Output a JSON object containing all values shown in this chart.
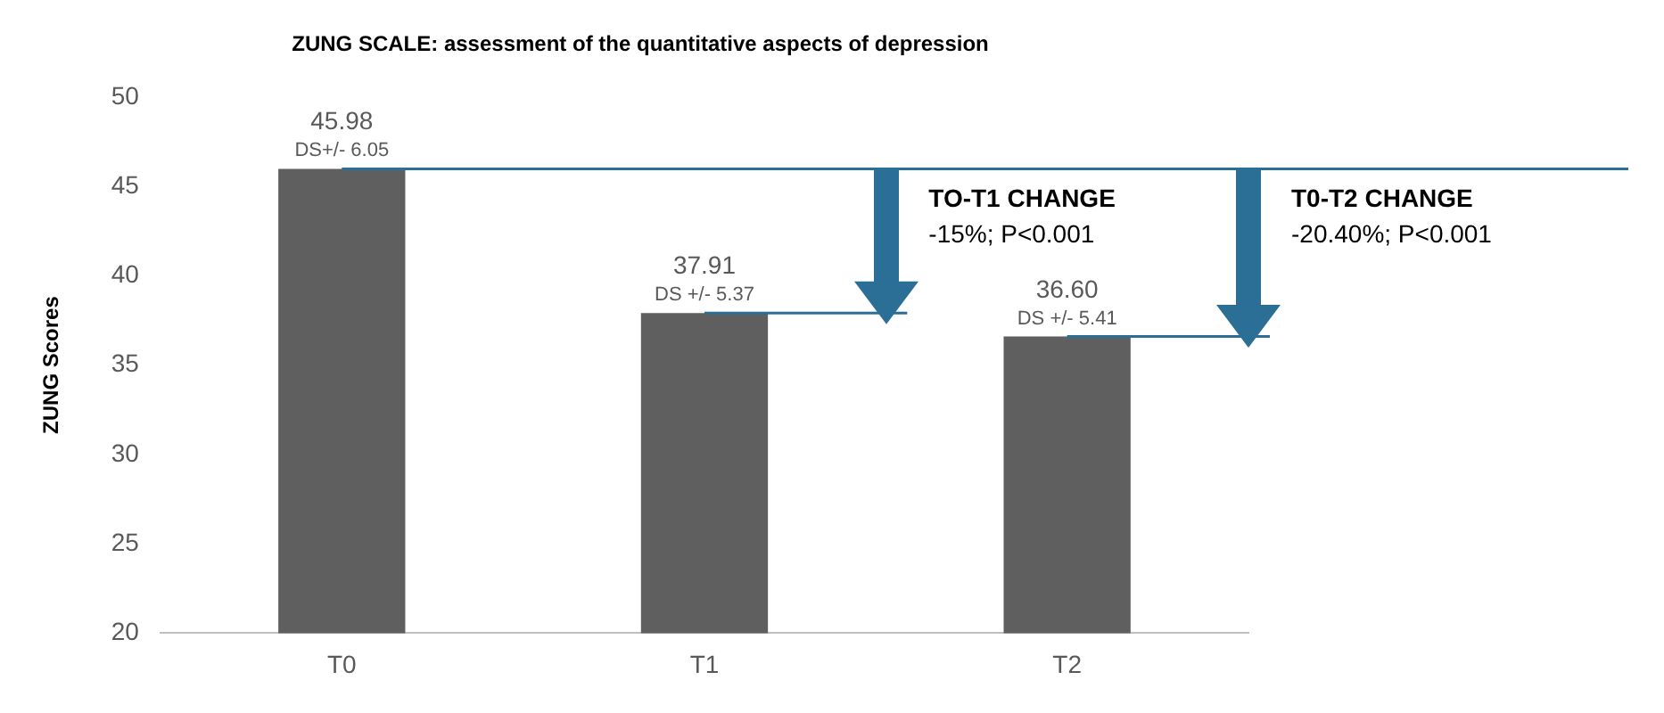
{
  "chart_data": {
    "type": "bar",
    "title": "ZUNG SCALE: assessment of the quantitative aspects of depression",
    "ylabel": "ZUNG Scores",
    "categories": [
      "T0",
      "T1",
      "T2"
    ],
    "values": [
      45.98,
      37.91,
      36.6
    ],
    "value_labels": [
      "45.98",
      "37.91",
      "36.60"
    ],
    "color": "#5f5f5f",
    "ylim": [
      20,
      50
    ],
    "yticks": [
      20,
      25,
      30,
      35,
      40,
      45,
      50
    ],
    "grid": false,
    "legend": false,
    "ref_lines": [
      {
        "axis": "y",
        "value": 45.98,
        "color": "#2b6e96"
      },
      {
        "axis": "y",
        "value": 37.91,
        "color": "#2b6e96"
      },
      {
        "axis": "y",
        "value": 36.6,
        "color": "#2b6e96"
      }
    ],
    "annotations": [
      {
        "text": "DS+/- 6.05",
        "x": "T0",
        "y": 45.98
      },
      {
        "text": "DS +/- 5.37",
        "x": "T1",
        "y": 37.91
      },
      {
        "text": "DS +/- 5.41",
        "x": "T2",
        "y": 36.6
      },
      "TO-T1 CHANGE",
      "-15%; P<0.001",
      "T0-T2 CHANGE",
      "-20.40%; P<0.001"
    ]
  }
}
